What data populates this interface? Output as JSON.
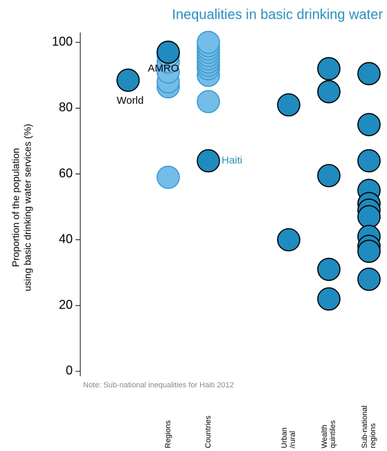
{
  "chart_data": {
    "type": "scatter",
    "title": "Inequalities in basic drinking water",
    "y_label": "Proportion of the population\nusing basic drinking water services (%)",
    "categories": [
      null,
      "Regions",
      "Countries",
      null,
      "Urban\n/rural",
      "Wealth\nquintiles",
      "Sub-national\nregions"
    ],
    "ylim": [
      -1.5,
      103
    ],
    "yticks": [
      0,
      20,
      40,
      60,
      80,
      100
    ],
    "series": [
      {
        "color": "#74bde9",
        "x": [
          1,
          1,
          1,
          1,
          1,
          1,
          1,
          2,
          2,
          2,
          2,
          2,
          2,
          2,
          2,
          2,
          2,
          2
        ],
        "values": [
          59,
          86.5,
          88,
          91,
          94,
          96,
          97,
          82,
          90,
          92,
          93,
          94,
          95,
          96,
          97,
          98,
          99,
          100
        ]
      },
      {
        "color": "#1f8bbf",
        "x": [
          0,
          1,
          2,
          4,
          4,
          5,
          5,
          5,
          5,
          5,
          6,
          6,
          6,
          6,
          6,
          6,
          6,
          6,
          6,
          6,
          6
        ],
        "values": [
          88.5,
          97,
          64,
          81,
          40,
          92,
          85,
          59.5,
          31,
          22,
          90.5,
          75,
          64,
          55,
          51,
          49,
          47,
          41,
          38,
          36.5,
          28
        ]
      }
    ],
    "annotations": [
      {
        "text": "World",
        "color": "#000000"
      },
      {
        "text": "AMRO",
        "color": "#000000"
      },
      {
        "text": "Haiti",
        "color": "#2a8fc0"
      }
    ],
    "note": "Note: Sub-national inequalities for Haiti  2012"
  }
}
